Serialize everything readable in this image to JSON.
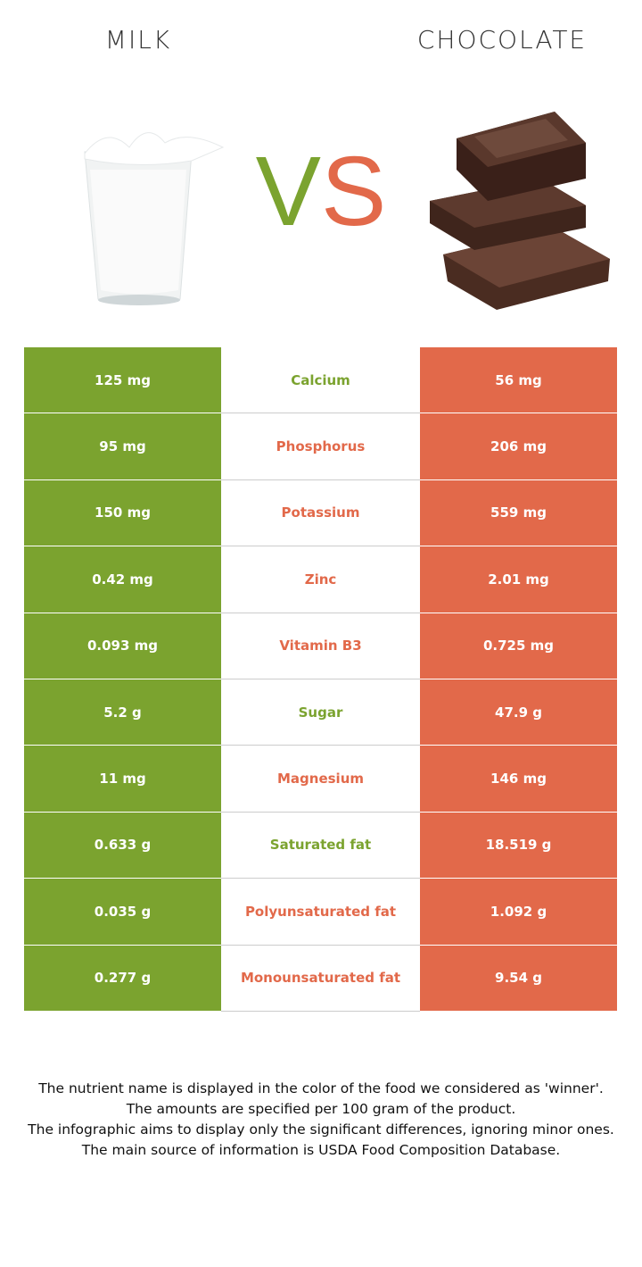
{
  "header": {
    "left": "MILK",
    "right": "CHOCOLATE",
    "vs": "VS"
  },
  "colors": {
    "left": "#7ba32f",
    "right": "#e2694a"
  },
  "table": {
    "rows": [
      {
        "left": "125 mg",
        "name": "Calcium",
        "right": "56 mg",
        "color": "#7ba32f"
      },
      {
        "left": "95 mg",
        "name": "Phosphorus",
        "right": "206 mg",
        "color": "#e2694a"
      },
      {
        "left": "150 mg",
        "name": "Potassium",
        "right": "559 mg",
        "color": "#e2694a"
      },
      {
        "left": "0.42 mg",
        "name": "Zinc",
        "right": "2.01 mg",
        "color": "#e2694a"
      },
      {
        "left": "0.093 mg",
        "name": "Vitamin B3",
        "right": "0.725 mg",
        "color": "#e2694a"
      },
      {
        "left": "5.2 g",
        "name": "Sugar",
        "right": "47.9 g",
        "color": "#7ba32f"
      },
      {
        "left": "11 mg",
        "name": "Magnesium",
        "right": "146 mg",
        "color": "#e2694a"
      },
      {
        "left": "0.633 g",
        "name": "Saturated fat",
        "right": "18.519 g",
        "color": "#7ba32f"
      },
      {
        "left": "0.035 g",
        "name": "Polyunsaturated fat",
        "right": "1.092 g",
        "color": "#e2694a"
      },
      {
        "left": "0.277 g",
        "name": "Monounsaturated fat",
        "right": "9.54 g",
        "color": "#e2694a"
      }
    ]
  },
  "notes": [
    "The nutrient name is displayed in the color of the food we considered as 'winner'.",
    "The amounts are specified per 100 gram of the product.",
    "The infographic aims to display only the significant differences, ignoring minor ones.",
    "The main source of information is USDA Food Composition Database."
  ]
}
